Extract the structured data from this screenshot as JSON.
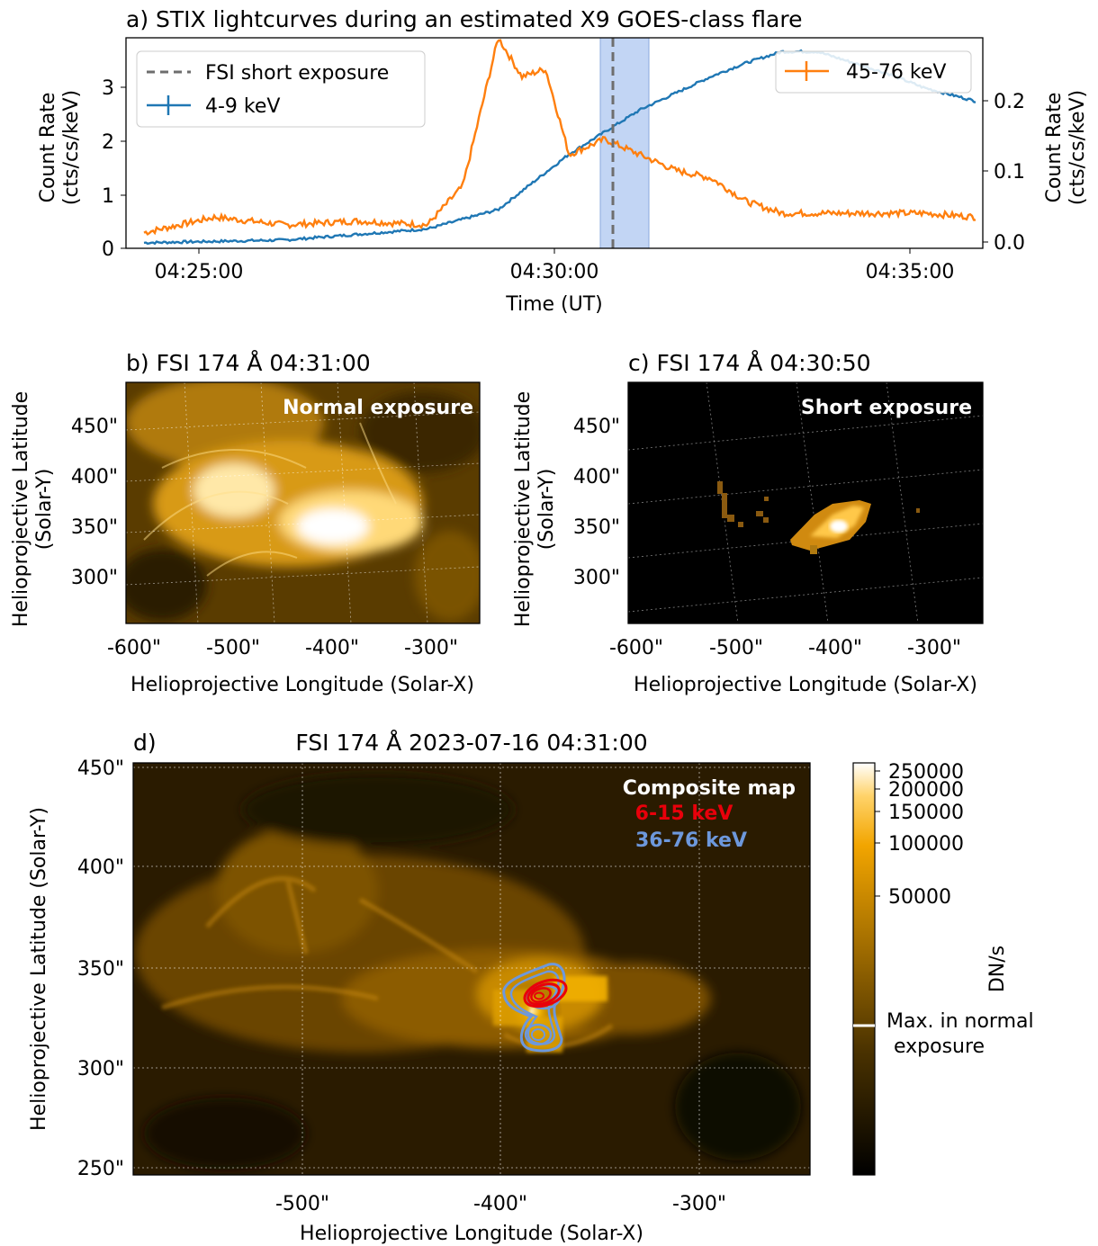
{
  "panel_a": {
    "title": "a)  STIX lightcurves during an estimated X9 GOES-class flare",
    "xlabel": "Time (UT)",
    "ylabel_left_1": "Count Rate",
    "ylabel_left_2": "(cts/cs/keV)",
    "ylabel_right_1": "Count Rate",
    "ylabel_right_2": "(cts/cs/keV)",
    "xticks": [
      "04:25:00",
      "04:30:00",
      "04:35:00"
    ],
    "yticks_left": [
      "0",
      "1",
      "2",
      "3"
    ],
    "yticks_right": [
      "0.0",
      "0.1",
      "0.2"
    ],
    "legend_left": [
      "FSI short exposure",
      "4-9 keV"
    ],
    "legend_right": [
      "45-76 keV"
    ]
  },
  "panel_b": {
    "title": "b)    FSI 174 Å 04:31:00",
    "annotation": "Normal exposure",
    "xticks": [
      "-600\"",
      "-500\"",
      "-400\"",
      "-300\""
    ],
    "yticks": [
      "450\"",
      "400\"",
      "350\"",
      "300\""
    ],
    "xlabel": "Helioprojective Longitude (Solar-X)",
    "ylabel_1": "Helioprojective Latitude",
    "ylabel_2": "(Solar-Y)"
  },
  "panel_c": {
    "title": "c)    FSI 174 Å 04:30:50",
    "annotation": "Short exposure",
    "xticks": [
      "-600\"",
      "-500\"",
      "-400\"",
      "-300\""
    ],
    "yticks": [
      "450\"",
      "400\"",
      "350\"",
      "300\""
    ],
    "xlabel": "Helioprojective Longitude (Solar-X)",
    "ylabel_1": "Helioprojective Latitude",
    "ylabel_2": "(Solar-Y)"
  },
  "panel_d": {
    "label": "d)",
    "title": "FSI 174 Å 2023-07-16 04:31:00",
    "annotation_1": "Composite map",
    "annotation_2": "6-15 keV",
    "annotation_3": "36-76 keV",
    "xticks": [
      "-500\"",
      "-400\"",
      "-300\""
    ],
    "yticks": [
      "450\"",
      "400\"",
      "350\"",
      "300\"",
      "250\""
    ],
    "xlabel": "Helioprojective Longitude (Solar-X)",
    "ylabel": "Helioprojective Latitude (Solar-Y)"
  },
  "colorbar": {
    "ticks": [
      "250000",
      "200000",
      "150000",
      "100000",
      "50000"
    ],
    "unit": "DN/s",
    "marker_label_1": "Max. in normal",
    "marker_label_2": "exposure"
  },
  "colors": {
    "low": "#4-9 keV blue #1f77b4",
    "series_low": "#1f77b4",
    "series_high": "#ff7f0e",
    "band": "#aec7f0",
    "contour_low": "#e8000b",
    "contour_high": "#6d98dc"
  },
  "chart_data": {
    "type": "line",
    "x_range": [
      "04:23:45",
      "04:35:50"
    ],
    "series": [
      {
        "name": "4-9 keV",
        "x": [
          "04:24:00",
          "04:26:00",
          "04:28:00",
          "04:29:00",
          "04:30:00",
          "04:30:30",
          "04:31:00",
          "04:31:30",
          "04:32:00",
          "04:32:30",
          "04:33:00",
          "04:33:30",
          "04:34:00",
          "04:34:30",
          "04:35:00",
          "04:35:45"
        ],
        "y": [
          0.1,
          0.15,
          0.35,
          0.7,
          1.7,
          2.1,
          2.5,
          2.8,
          3.1,
          3.35,
          3.55,
          3.55,
          3.35,
          3.15,
          2.9,
          2.65
        ]
      },
      {
        "name": "45-76 keV",
        "x": [
          "04:24:00",
          "04:25:00",
          "04:26:00",
          "04:27:00",
          "04:28:00",
          "04:28:30",
          "04:29:00",
          "04:29:20",
          "04:29:40",
          "04:30:00",
          "04:30:30",
          "04:31:00",
          "04:31:30",
          "04:32:00",
          "04:32:30",
          "04:33:00",
          "04:34:00",
          "04:35:00",
          "04:35:45"
        ],
        "y": [
          0.02,
          0.04,
          0.03,
          0.035,
          0.03,
          0.08,
          0.27,
          0.22,
          0.23,
          0.12,
          0.14,
          0.12,
          0.1,
          0.09,
          0.06,
          0.045,
          0.045,
          0.045,
          0.04
        ]
      }
    ],
    "ylim_left": [
      0,
      3.8
    ],
    "ylim_right": [
      0,
      0.27
    ],
    "vline": "04:30:50",
    "band": [
      "04:30:38",
      "04:31:18"
    ]
  }
}
